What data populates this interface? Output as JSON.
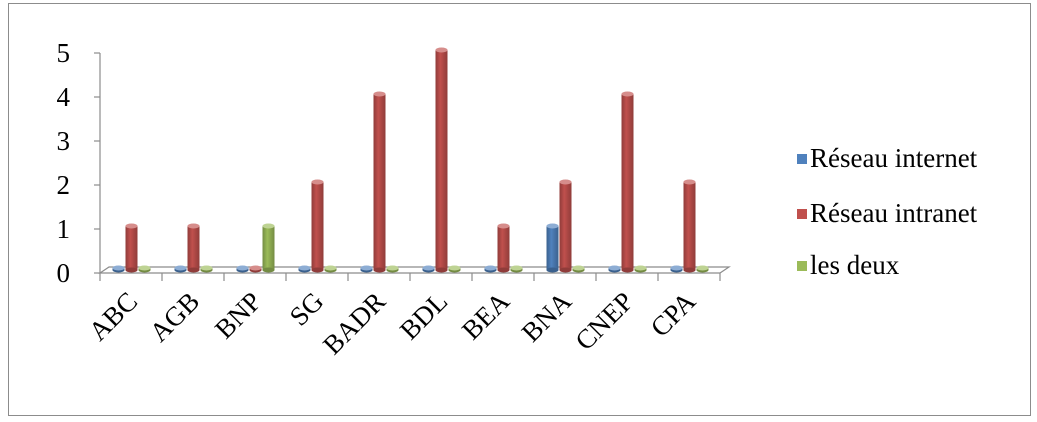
{
  "chart_data": {
    "type": "bar",
    "categories": [
      "ABC",
      "AGB",
      "BNP",
      "SG",
      "BADR",
      "BDL",
      "BEA",
      "BNA",
      "CNEP",
      "CPA"
    ],
    "series": [
      {
        "name": "Réseau internet",
        "color": "#4f81bd",
        "values": [
          0,
          0,
          0,
          0,
          0,
          0,
          0,
          1,
          0,
          0
        ]
      },
      {
        "name": "Réseau intranet",
        "color": "#c0504d",
        "values": [
          1,
          1,
          0,
          2,
          4,
          5,
          1,
          2,
          4,
          2
        ]
      },
      {
        "name": "les deux",
        "color": "#9bbb59",
        "values": [
          0,
          0,
          1,
          0,
          0,
          0,
          0,
          0,
          0,
          0
        ]
      }
    ],
    "yticks": [
      0,
      1,
      2,
      3,
      4,
      5
    ],
    "ylim": [
      0,
      5
    ],
    "title": "",
    "xlabel": "",
    "ylabel": "",
    "legend_position": "right",
    "grid": false
  }
}
